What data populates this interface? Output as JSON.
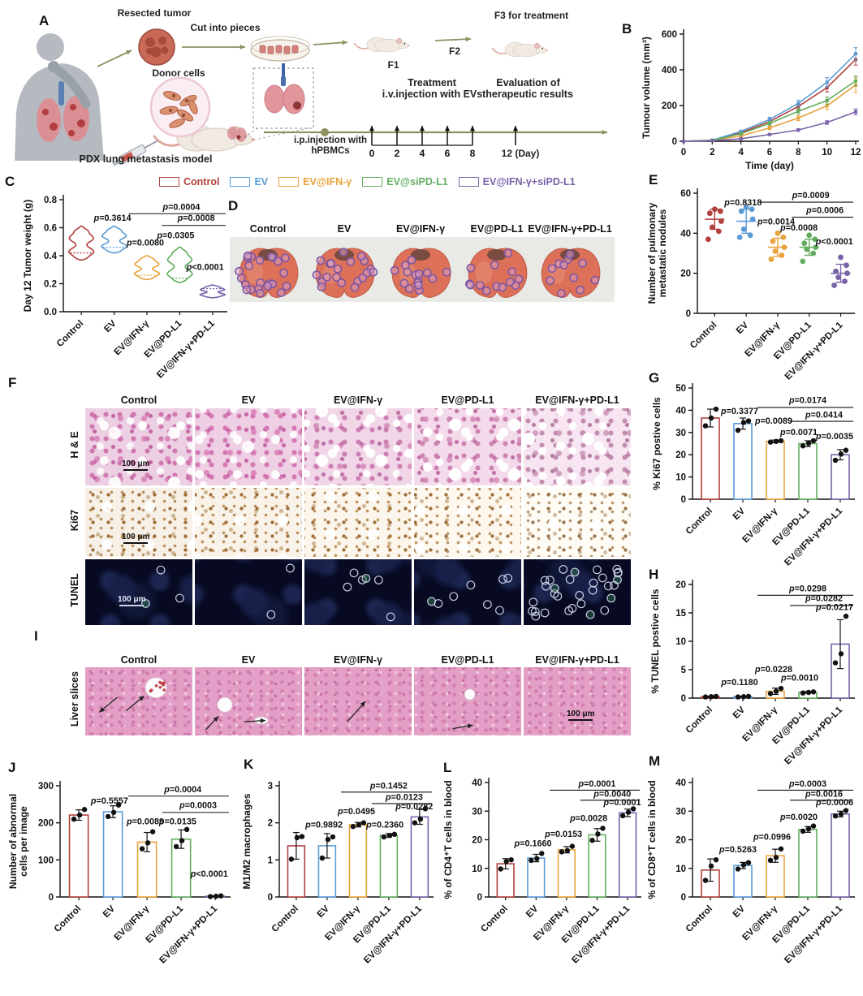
{
  "colors": {
    "groups": [
      "#b0413e",
      "#5b9bd5",
      "#e8a33d",
      "#63ad5f",
      "#7a62a8"
    ],
    "axis": "#111111",
    "timeline": "#8e9160"
  },
  "groups": [
    "Control",
    "EV",
    "EV@IFN-γ",
    "EV@PD-L1",
    "EV@IFN-γ+PD-L1"
  ],
  "panel_letters": [
    "A",
    "B",
    "C",
    "D",
    "E",
    "F",
    "G",
    "H",
    "I",
    "J",
    "K",
    "L",
    "M"
  ],
  "legend": {
    "items": [
      {
        "label": "Control",
        "color": "#b0413e"
      },
      {
        "label": "EV",
        "color": "#5b9bd5"
      },
      {
        "label": "EV@IFN-γ",
        "color": "#e8a33d"
      },
      {
        "label": "EV@siPD-L1",
        "color": "#63ad5f"
      },
      {
        "label": "EV@IFN-γ+siPD-L1",
        "color": "#7a62a8"
      }
    ]
  },
  "panel_a": {
    "resected_tumor": "Resected tumor",
    "cut_into_pieces": "Cut into pieces",
    "donor_cells": "Donor cells",
    "f1": "F1",
    "f2": "F2",
    "f3": "F3 for treatment",
    "pdx_model": "PDX lung metastasis model",
    "ip_line1": "i.p.injection with",
    "ip_line2": "hPBMCs",
    "treatment_line1": "Treatment",
    "treatment_line2": "i.v.injection with EVs",
    "evaluation_line1": "Evaluation of",
    "evaluation_line2": "therapeutic results",
    "timeline_days": [
      "0",
      "2",
      "4",
      "6",
      "8"
    ],
    "day12": "12 (Day)"
  },
  "panel_d": {
    "nodule_counts": [
      23,
      20,
      15,
      13,
      11
    ]
  },
  "panel_f": {
    "row_labels": [
      "H & E",
      "Ki67",
      "TUNEL"
    ],
    "scale_label": "100 μm",
    "tunel_circle_counts": [
      3,
      2,
      6,
      8,
      31
    ]
  },
  "panel_i": {
    "row_label": "Liver slices",
    "scale_label": "100 μm",
    "arrow_counts": [
      2,
      2,
      1,
      1,
      0
    ]
  },
  "chart_data": [
    {
      "id": "B",
      "type": "line",
      "title": "",
      "ylabel": "Tumour volume (mm³)",
      "xlabel": "Time (day)",
      "ylim": [
        0,
        600
      ],
      "yticks": [
        0,
        200,
        400,
        600
      ],
      "x": [
        0,
        2,
        4,
        6,
        8,
        10,
        12
      ],
      "xticks": [
        0,
        2,
        4,
        6,
        8,
        10,
        12
      ],
      "series": [
        {
          "name": "Control",
          "color": "#b0413e",
          "values": [
            0,
            5,
            48,
            110,
            195,
            300,
            458
          ],
          "err": [
            0,
            2,
            7,
            12,
            16,
            24,
            32
          ]
        },
        {
          "name": "EV",
          "color": "#5b9bd5",
          "values": [
            0,
            6,
            55,
            122,
            212,
            330,
            490
          ],
          "err": [
            0,
            2,
            7,
            12,
            18,
            26,
            34
          ]
        },
        {
          "name": "EV@IFN-γ",
          "color": "#e8a33d",
          "values": [
            0,
            4,
            30,
            75,
            130,
            198,
            315
          ],
          "err": [
            0,
            2,
            6,
            10,
            14,
            22,
            42
          ]
        },
        {
          "name": "EV@siPD-L1",
          "color": "#63ad5f",
          "values": [
            0,
            5,
            42,
            100,
            168,
            228,
            338
          ],
          "err": [
            0,
            2,
            6,
            10,
            14,
            20,
            28
          ]
        },
        {
          "name": "EV@IFN-γ+siPD-L1",
          "color": "#7a62a8",
          "values": [
            0,
            3,
            14,
            38,
            63,
            105,
            165
          ],
          "err": [
            0,
            1,
            3,
            5,
            7,
            10,
            16
          ]
        }
      ]
    },
    {
      "id": "C",
      "type": "violin",
      "ylabel": "Day 12 Tumor weight (g)",
      "ylim": [
        0,
        0.8
      ],
      "yticks": [
        0,
        0.2,
        0.4,
        0.6,
        0.8
      ],
      "ytick_labels": [
        "0.0",
        "0.2",
        "0.4",
        "0.6",
        "0.8"
      ],
      "categories": [
        "Control",
        "EV",
        "EV@IFN-γ",
        "EV@PD-L1",
        "EV@IFN-γ+PD-L1"
      ],
      "violins": [
        {
          "min": 0.37,
          "median": 0.42,
          "max": 0.61
        },
        {
          "min": 0.42,
          "median": 0.46,
          "max": 0.61
        },
        {
          "min": 0.23,
          "median": 0.26,
          "max": 0.4
        },
        {
          "min": 0.21,
          "median": 0.24,
          "max": 0.46
        },
        {
          "min": 0.1,
          "median": 0.165,
          "max": 0.19
        }
      ],
      "annotations": [
        {
          "text": "p=0.3614",
          "x": 0.3,
          "y": 0.19
        },
        {
          "text": "p=0.0004",
          "x": 0.72,
          "y": 0.09
        },
        {
          "text": "p=0.0008",
          "x": 0.81,
          "y": 0.19
        },
        {
          "text": "p=0.0080",
          "x": 0.5,
          "y": 0.41
        },
        {
          "text": "p=0.0305",
          "x": 0.685,
          "y": 0.345
        },
        {
          "text": "p<0.0001",
          "x": 0.865,
          "y": 0.625
        }
      ],
      "sig_lines": [
        {
          "x1": 0.4,
          "x2": 0.99,
          "y": 0.125
        },
        {
          "x1": 0.6,
          "x2": 0.99,
          "y": 0.23
        }
      ]
    },
    {
      "id": "E",
      "type": "dots",
      "ylabel": [
        "Number of pulmonary",
        "metastatic nodules"
      ],
      "ylim": [
        0,
        60
      ],
      "yticks": [
        0,
        20,
        40,
        60
      ],
      "categories": [
        "Control",
        "EV",
        "EV@IFN-γ",
        "EV@PD-L1",
        "EV@IFN-γ+PD-L1"
      ],
      "points": [
        [
          37,
          41,
          43,
          46,
          50,
          51,
          52
        ],
        [
          38,
          39,
          42,
          47,
          51,
          52,
          53
        ],
        [
          27,
          29,
          31,
          33,
          36,
          38,
          40
        ],
        [
          26,
          30,
          32,
          33,
          35,
          37,
          39
        ],
        [
          14,
          16,
          18,
          20,
          21,
          24,
          28
        ]
      ],
      "means": [
        47,
        46,
        33,
        33,
        20
      ],
      "sds": [
        5,
        6,
        4.5,
        4,
        4.5
      ],
      "annotations": [
        {
          "text": "p=0.8318",
          "x": 0.29,
          "y": 0.1
        },
        {
          "text": "p=0.0009",
          "x": 0.72,
          "y": 0.04
        },
        {
          "text": "p=0.0006",
          "x": 0.81,
          "y": 0.165
        },
        {
          "text": "p=0.0014",
          "x": 0.5,
          "y": 0.26
        },
        {
          "text": "p=0.0008",
          "x": 0.645,
          "y": 0.31
        },
        {
          "text": "p<0.0001",
          "x": 0.87,
          "y": 0.425
        }
      ],
      "sig_lines": [
        {
          "x1": 0.4,
          "x2": 0.99,
          "y": 0.075
        },
        {
          "x1": 0.6,
          "x2": 0.99,
          "y": 0.2
        }
      ]
    },
    {
      "id": "G",
      "type": "bar",
      "ylabel": "% Ki67 postive cells",
      "ylim": [
        0,
        50
      ],
      "yticks": [
        0,
        10,
        20,
        30,
        40,
        50
      ],
      "categories": [
        "Control",
        "EV",
        "EV@IFN-γ",
        "EV@PD-L1",
        "EV@IFN-γ+PD-L1"
      ],
      "values": [
        36.5,
        34,
        26,
        25,
        20
      ],
      "errs": [
        4,
        2.5,
        0.6,
        1.3,
        2.3
      ],
      "points": [
        [
          33,
          36.5,
          40.5
        ],
        [
          31,
          34.5,
          35.2
        ],
        [
          25.7,
          26,
          26.3
        ],
        [
          24,
          25.2,
          26.3
        ],
        [
          17.5,
          20.3,
          22
        ]
      ],
      "annotations": [
        {
          "text": "p=0.3377",
          "x": 0.29,
          "y": 0.235
        },
        {
          "text": "p=0.0174",
          "x": 0.71,
          "y": 0.135
        },
        {
          "text": "p=0.0414",
          "x": 0.81,
          "y": 0.265
        },
        {
          "text": "p=0.0089",
          "x": 0.5,
          "y": 0.32
        },
        {
          "text": "p=0.0071",
          "x": 0.655,
          "y": 0.425
        },
        {
          "text": "p=0.0035",
          "x": 0.875,
          "y": 0.46
        }
      ],
      "sig_lines": [
        {
          "x1": 0.4,
          "x2": 0.99,
          "y": 0.175
        },
        {
          "x1": 0.6,
          "x2": 0.99,
          "y": 0.3
        }
      ]
    },
    {
      "id": "H",
      "type": "bar",
      "ylabel": "% TUNEL postive cells",
      "ylim": [
        0,
        20
      ],
      "yticks": [
        0,
        5,
        10,
        15,
        20
      ],
      "categories": [
        "Control",
        "EV",
        "EV@IFN-γ",
        "EV@PD-L1",
        "EV@IFN-γ+PD-L1"
      ],
      "values": [
        0.25,
        0.25,
        1.2,
        1.0,
        9.5
      ],
      "errs": [
        0.1,
        0.1,
        0.55,
        0.15,
        4.3
      ],
      "points": [
        [
          0.2,
          0.25,
          0.3
        ],
        [
          0.2,
          0.25,
          0.3
        ],
        [
          0.8,
          1.2,
          1.7
        ],
        [
          0.9,
          1.0,
          1.1
        ],
        [
          6.2,
          7.8,
          14.4
        ]
      ],
      "annotations": [
        {
          "text": "p=0.0298",
          "x": 0.71,
          "y": 0.06
        },
        {
          "text": "p=0.0282",
          "x": 0.81,
          "y": 0.145
        },
        {
          "text": "p=0.0217",
          "x": 0.875,
          "y": 0.225
        },
        {
          "text": "p=0.1180",
          "x": 0.29,
          "y": 0.885
        },
        {
          "text": "p=0.0228",
          "x": 0.5,
          "y": 0.77
        },
        {
          "text": "p=0.0010",
          "x": 0.66,
          "y": 0.845
        }
      ],
      "sig_lines": [
        {
          "x1": 0.4,
          "x2": 0.99,
          "y": 0.095
        },
        {
          "x1": 0.6,
          "x2": 0.99,
          "y": 0.185
        }
      ]
    },
    {
      "id": "J",
      "type": "bar",
      "ylabel": [
        "Number of abnormal",
        "cells per image"
      ],
      "ylim": [
        0,
        300
      ],
      "yticks": [
        0,
        100,
        200,
        300
      ],
      "categories": [
        "Control",
        "EV",
        "EV@IFN-γ",
        "EV@PD-L1",
        "EV@IFN-γ+PD-L1"
      ],
      "values": [
        221,
        230,
        148,
        156,
        2
      ],
      "errs": [
        14,
        16,
        26,
        25,
        1
      ],
      "points": [
        [
          210,
          221,
          236
        ],
        [
          217,
          228,
          248
        ],
        [
          130,
          146,
          176
        ],
        [
          136,
          152,
          182
        ],
        [
          1,
          2,
          3
        ]
      ],
      "annotations": [
        {
          "text": "p=0.5557",
          "x": 0.29,
          "y": 0.16
        },
        {
          "text": "p=0.0004",
          "x": 0.72,
          "y": 0.057
        },
        {
          "text": "p=0.0003",
          "x": 0.81,
          "y": 0.2
        },
        {
          "text": "p=0.0089",
          "x": 0.5,
          "y": 0.347
        },
        {
          "text": "p=0.0135",
          "x": 0.69,
          "y": 0.347
        },
        {
          "text": "p<0.0001",
          "x": 0.875,
          "y": 0.817
        }
      ],
      "sig_lines": [
        {
          "x1": 0.4,
          "x2": 0.99,
          "y": 0.093
        },
        {
          "x1": 0.6,
          "x2": 0.99,
          "y": 0.24
        }
      ]
    },
    {
      "id": "K",
      "type": "bar",
      "ylabel": "M1/M2 macrophages",
      "ylim": [
        0,
        3
      ],
      "yticks": [
        0,
        1,
        2,
        3
      ],
      "categories": [
        "Control",
        "EV",
        "EV@IFN-γ",
        "EV@PD-L1",
        "EV@IFN-γ+PD-L1"
      ],
      "values": [
        1.38,
        1.38,
        1.95,
        1.66,
        2.16
      ],
      "errs": [
        0.36,
        0.33,
        0.06,
        0.05,
        0.2
      ],
      "points": [
        [
          1.02,
          1.6,
          1.63
        ],
        [
          1.05,
          1.55,
          1.62
        ],
        [
          1.9,
          1.95,
          2.0
        ],
        [
          1.62,
          1.66,
          1.69
        ],
        [
          2.0,
          2.1,
          2.38
        ]
      ],
      "annotations": [
        {
          "text": "p=0.1452",
          "x": 0.71,
          "y": 0.027
        },
        {
          "text": "p=0.0123",
          "x": 0.81,
          "y": 0.127
        },
        {
          "text": "p=0.0282",
          "x": 0.875,
          "y": 0.21
        },
        {
          "text": "p=0.9892",
          "x": 0.29,
          "y": 0.377
        },
        {
          "text": "p=0.0495",
          "x": 0.5,
          "y": 0.257
        },
        {
          "text": "p=0.2360",
          "x": 0.685,
          "y": 0.377
        }
      ],
      "sig_lines": [
        {
          "x1": 0.4,
          "x2": 0.99,
          "y": 0.057
        },
        {
          "x1": 0.6,
          "x2": 0.99,
          "y": 0.16
        }
      ]
    },
    {
      "id": "L",
      "type": "bar",
      "ylabel": "% of CD4⁺T cells in blood",
      "ylim": [
        0,
        40
      ],
      "yticks": [
        0,
        10,
        20,
        30,
        40
      ],
      "categories": [
        "Control",
        "EV",
        "EV@IFN-γ",
        "EV@PD-L1",
        "EV@IFN-γ+PD-L1"
      ],
      "values": [
        11.6,
        13.6,
        16.5,
        21.7,
        29.4
      ],
      "errs": [
        1.8,
        1.3,
        1.1,
        2.2,
        1.3
      ],
      "points": [
        [
          9.8,
          12.4,
          13.0
        ],
        [
          12.8,
          13.4,
          15.2
        ],
        [
          15.8,
          16.2,
          17.7
        ],
        [
          19.8,
          22,
          24
        ],
        [
          28.4,
          29.6,
          30.8
        ]
      ],
      "annotations": [
        {
          "text": "p=0.0001",
          "x": 0.71,
          "y": 0.037
        },
        {
          "text": "p=0.0040",
          "x": 0.81,
          "y": 0.125
        },
        {
          "text": "p=0.0001",
          "x": 0.875,
          "y": 0.2
        },
        {
          "text": "p=0.1660",
          "x": 0.29,
          "y": 0.555
        },
        {
          "text": "p=0.0153",
          "x": 0.49,
          "y": 0.475
        },
        {
          "text": "p=0.0028",
          "x": 0.655,
          "y": 0.337
        }
      ],
      "sig_lines": [
        {
          "x1": 0.4,
          "x2": 0.99,
          "y": 0.067
        },
        {
          "x1": 0.6,
          "x2": 0.99,
          "y": 0.155
        }
      ]
    },
    {
      "id": "M",
      "type": "bar",
      "ylabel": "% of CD8⁺T cells in blood",
      "ylim": [
        0,
        40
      ],
      "yticks": [
        0,
        10,
        20,
        30,
        40
      ],
      "categories": [
        "Control",
        "EV",
        "EV@IFN-γ",
        "EV@PD-L1",
        "EV@IFN-γ+PD-L1"
      ],
      "values": [
        9.4,
        11,
        14.4,
        23.6,
        29
      ],
      "errs": [
        3.9,
        1.1,
        2.3,
        1.0,
        1.0
      ],
      "points": [
        [
          5.8,
          10.8,
          13
        ],
        [
          9.8,
          11.2,
          12
        ],
        [
          12.8,
          13.8,
          16.8
        ],
        [
          23,
          23.8,
          24.8
        ],
        [
          28.3,
          29,
          30.2
        ]
      ],
      "annotations": [
        {
          "text": "p=0.0003",
          "x": 0.71,
          "y": 0.037
        },
        {
          "text": "p=0.0016",
          "x": 0.81,
          "y": 0.125
        },
        {
          "text": "p=0.0006",
          "x": 0.875,
          "y": 0.2
        },
        {
          "text": "p=0.5263",
          "x": 0.28,
          "y": 0.61
        },
        {
          "text": "p=0.0996",
          "x": 0.49,
          "y": 0.5
        },
        {
          "text": "p=0.0020",
          "x": 0.655,
          "y": 0.325
        }
      ],
      "sig_lines": [
        {
          "x1": 0.4,
          "x2": 0.99,
          "y": 0.067
        },
        {
          "x1": 0.6,
          "x2": 0.99,
          "y": 0.155
        }
      ]
    }
  ]
}
